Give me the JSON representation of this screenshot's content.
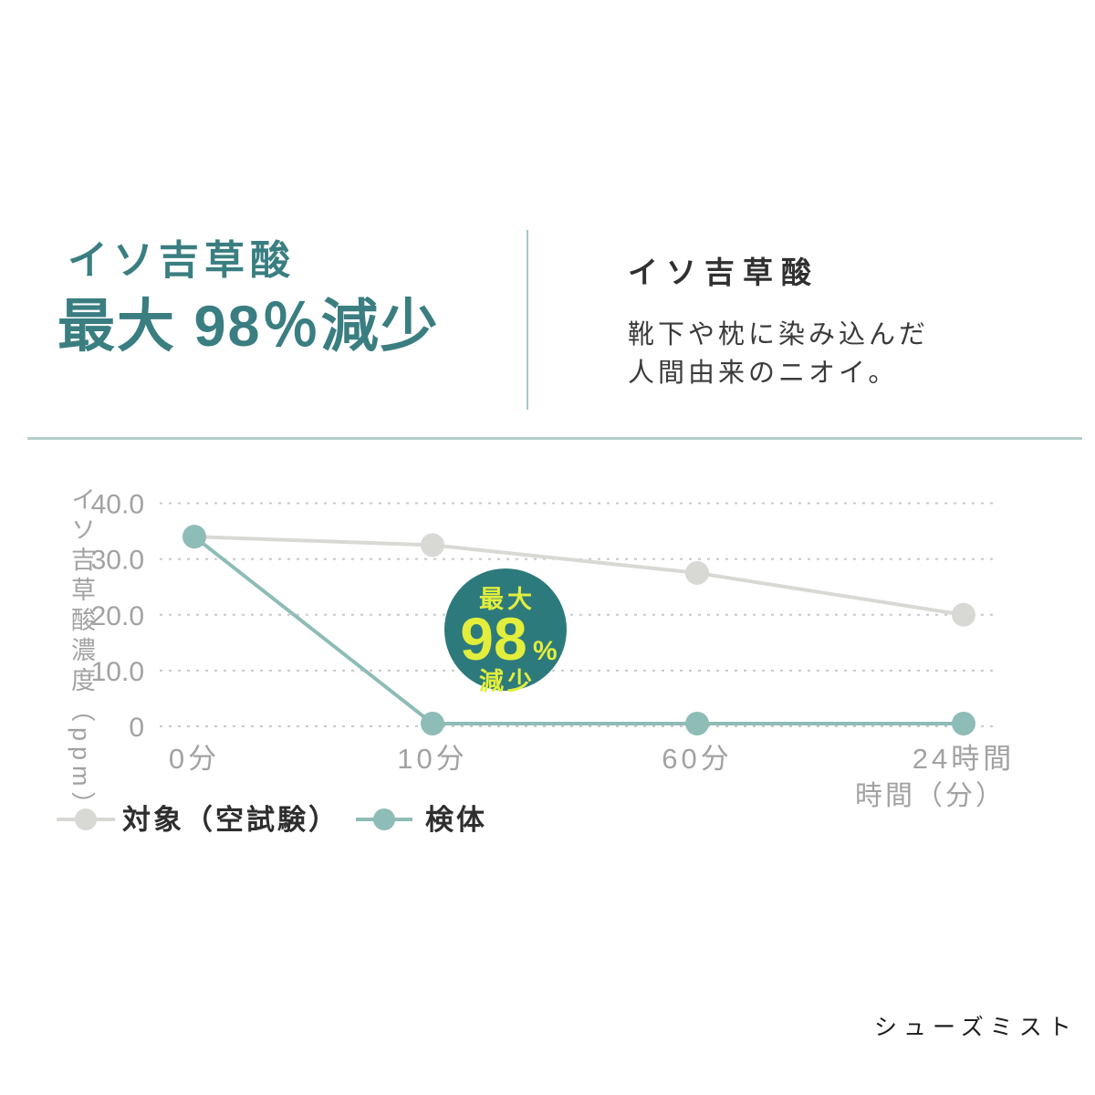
{
  "page": {
    "background": "#ffffff",
    "brand": "シューズミスト"
  },
  "header": {
    "left_title_line1": "イソ吉草酸",
    "left_title_line2": "最大 98％減少",
    "right_title": "イソ吉草酸",
    "right_desc_line1": "靴下や枕に染み込んだ",
    "right_desc_line2": "人間由来のニオイ。"
  },
  "badge": {
    "line1": "最大",
    "value": "98",
    "unit": "%",
    "line2": "減少"
  },
  "colors": {
    "accent_teal": "#3A7E81",
    "badge_teal": "#2D7A7D",
    "badge_text_yellow": "#E2EE3B",
    "series_control_gray": "#D8D8D5",
    "series_sample_teal": "#8EBCB7",
    "grid_gray": "#C8C8C8",
    "axis_text_gray": "#A2A2A2",
    "legend_text_dark": "#2E2E2E",
    "body_text_dark": "#3B3B3B",
    "divider_teal": "#A6C9C5",
    "rule_teal": "#B5CFCA"
  },
  "chart_data": {
    "type": "line",
    "title": "イソ吉草酸 最大98％減少",
    "categories": [
      "0分",
      "10分",
      "60分",
      "24時間"
    ],
    "xlabel": "時間（分）",
    "ylabel": "イソ吉草酸濃度（ppm）",
    "ylim": [
      0,
      40
    ],
    "y_tick_labels": [
      "40.0",
      "30.0",
      "20.0",
      "10.0",
      "0"
    ],
    "y_tick_values": [
      40,
      30,
      20,
      10,
      0
    ],
    "grid": "horizontal-dashed",
    "legend_position": "bottom-left",
    "series": [
      {
        "name": "対象（空試験）",
        "color_key": "series_control_gray",
        "values": [
          34,
          32.5,
          27.5,
          20
        ]
      },
      {
        "name": "検体",
        "color_key": "series_sample_teal",
        "values": [
          34,
          0.5,
          0.5,
          0.5
        ]
      }
    ],
    "annotation": {
      "text": "最大98%減少",
      "location": "between 10分 and 60分, mid-chart"
    }
  }
}
